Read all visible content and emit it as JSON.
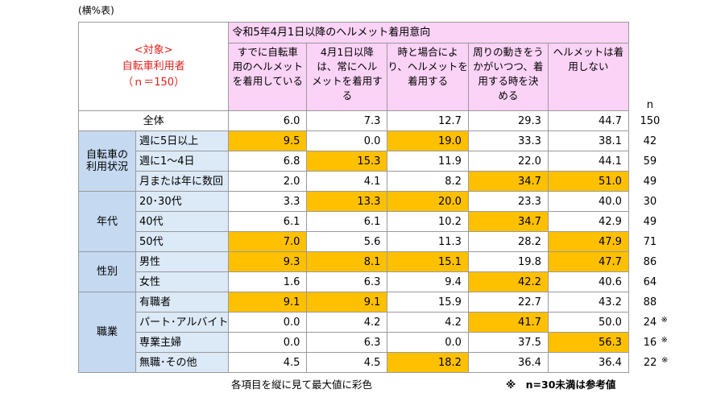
{
  "caption": "(横%表)",
  "target": [
    "<対象>",
    "自転車利用者",
    "（ｎ＝150）"
  ],
  "header_group": "令和5年4月1日以降のヘルメット着用意向",
  "columns": [
    [
      "すでに自転車",
      "用のヘルメット",
      "を着用している"
    ],
    [
      "4月1日以降",
      "は、常にヘル",
      "メットを着用す",
      "る"
    ],
    [
      "時と場合によ",
      "り、ヘルメットを",
      "着用する"
    ],
    [
      "周りの動きをう",
      "かがいつつ、着",
      "用する時を決",
      "める"
    ],
    [
      "ヘルメットは着",
      "用しない"
    ]
  ],
  "n_label": "n",
  "highlight_color": "#ffc000",
  "total": {
    "label": "全体",
    "values": [
      "6.0",
      "7.3",
      "12.7",
      "29.3",
      "44.7"
    ],
    "n": "150",
    "highlight": []
  },
  "groups": [
    {
      "label": [
        "自転車の",
        "利用状況"
      ],
      "rows": [
        {
          "label": "週に5日以上",
          "values": [
            "9.5",
            "0.0",
            "19.0",
            "33.3",
            "38.1"
          ],
          "n": "42",
          "highlight": [
            0,
            2
          ]
        },
        {
          "label": "週に1～4日",
          "values": [
            "6.8",
            "15.3",
            "11.9",
            "22.0",
            "44.1"
          ],
          "n": "59",
          "highlight": [
            1
          ]
        },
        {
          "label": "月または年に数回",
          "values": [
            "2.0",
            "4.1",
            "8.2",
            "34.7",
            "51.0"
          ],
          "n": "49",
          "highlight": [
            3,
            4
          ]
        }
      ]
    },
    {
      "label": [
        "年代"
      ],
      "rows": [
        {
          "label": "20･30代",
          "values": [
            "3.3",
            "13.3",
            "20.0",
            "23.3",
            "40.0"
          ],
          "n": "30",
          "highlight": [
            1,
            2
          ]
        },
        {
          "label": "40代",
          "values": [
            "6.1",
            "6.1",
            "10.2",
            "34.7",
            "42.9"
          ],
          "n": "49",
          "highlight": [
            3
          ]
        },
        {
          "label": "50代",
          "values": [
            "7.0",
            "5.6",
            "11.3",
            "28.2",
            "47.9"
          ],
          "n": "71",
          "highlight": [
            0,
            4
          ]
        }
      ]
    },
    {
      "label": [
        "性別"
      ],
      "rows": [
        {
          "label": "男性",
          "values": [
            "9.3",
            "8.1",
            "15.1",
            "19.8",
            "47.7"
          ],
          "n": "86",
          "highlight": [
            0,
            1,
            2,
            4
          ]
        },
        {
          "label": "女性",
          "values": [
            "1.6",
            "6.3",
            "9.4",
            "42.2",
            "40.6"
          ],
          "n": "64",
          "highlight": [
            3
          ]
        }
      ]
    },
    {
      "label": [
        "職業"
      ],
      "rows": [
        {
          "label": "有職者",
          "values": [
            "9.1",
            "9.1",
            "15.9",
            "22.7",
            "43.2"
          ],
          "n": "88",
          "highlight": [
            0,
            1
          ]
        },
        {
          "label": "パート･アルバイト",
          "values": [
            "0.0",
            "4.2",
            "4.2",
            "41.7",
            "50.0"
          ],
          "n": "24",
          "note": "※",
          "highlight": [
            3
          ]
        },
        {
          "label": "専業主婦",
          "values": [
            "0.0",
            "6.3",
            "0.0",
            "37.5",
            "56.3"
          ],
          "n": "16",
          "note": "※",
          "highlight": [
            4
          ]
        },
        {
          "label": "無職･その他",
          "values": [
            "4.5",
            "4.5",
            "18.2",
            "36.4",
            "36.4"
          ],
          "n": "22",
          "note": "※",
          "highlight": [
            2
          ]
        }
      ]
    }
  ],
  "footnote": "各項目を縦に見て最大値に彩色",
  "reference_note": "※　n=30未満は参考値"
}
